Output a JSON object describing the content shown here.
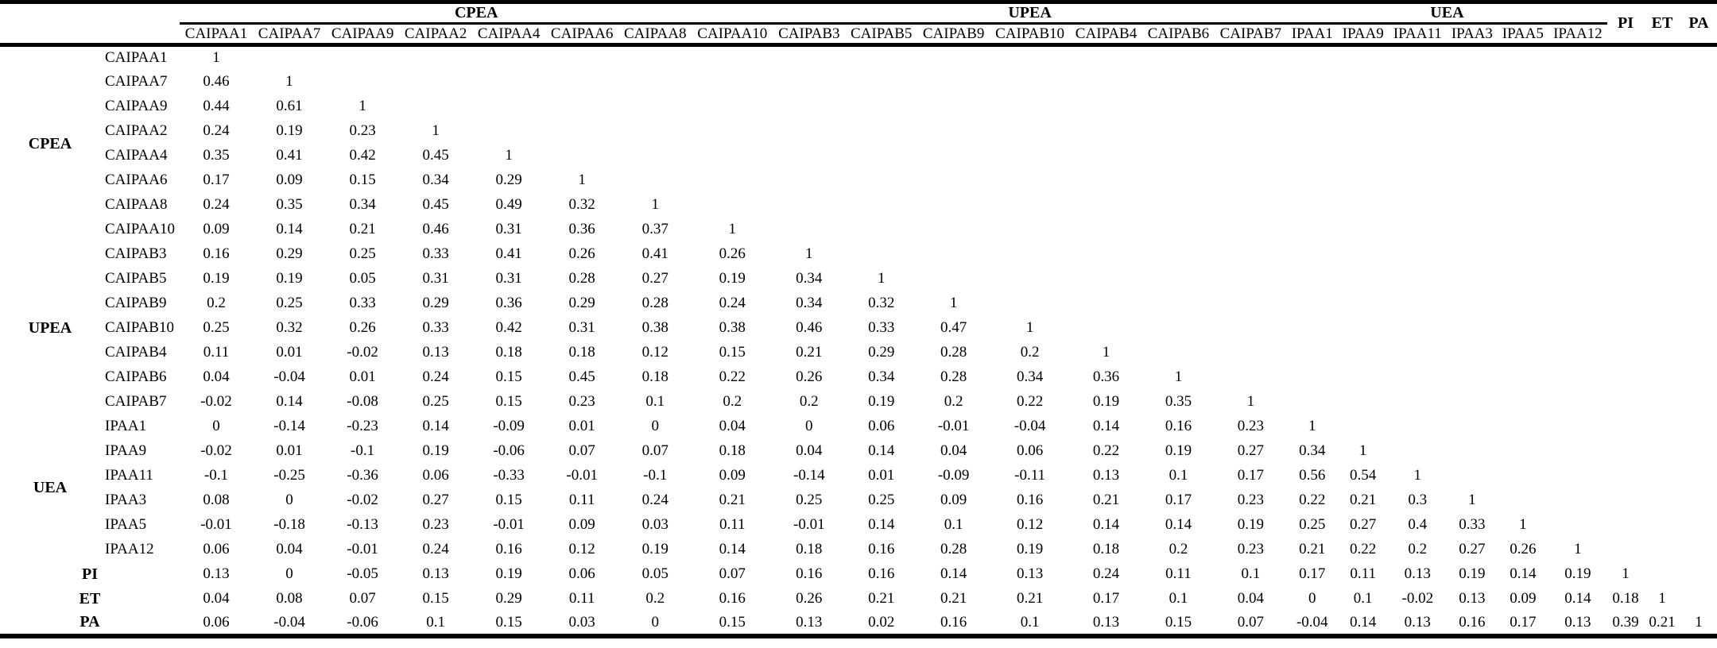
{
  "page": {
    "background": "#ffffff",
    "text_color": "#000000",
    "rule_color": "#000000"
  },
  "table": {
    "corner_label": "",
    "column_groups": [
      {
        "label": "CPEA",
        "span": 8
      },
      {
        "label": "UPEA",
        "span": 7
      },
      {
        "label": "UEA",
        "span": 6
      }
    ],
    "columns": [
      "CAIPAA1",
      "CAIPAA7",
      "CAIPAA9",
      "CAIPAA2",
      "CAIPAA4",
      "CAIPAA6",
      "CAIPAA8",
      "CAIPAA10",
      "CAIPAB3",
      "CAIPAB5",
      "CAIPAB9",
      "CAIPAB10",
      "CAIPAB4",
      "CAIPAB6",
      "CAIPAB7",
      "IPAA1",
      "IPAA9",
      "IPAA11",
      "IPAA3",
      "IPAA5",
      "IPAA12"
    ],
    "tail_columns": [
      "PI",
      "ET",
      "PA"
    ],
    "row_groups": [
      {
        "label": "CPEA",
        "rows": [
          {
            "label": "CAIPAA1",
            "values": [
              "1"
            ]
          },
          {
            "label": "CAIPAA7",
            "values": [
              "0.46",
              "1"
            ]
          },
          {
            "label": "CAIPAA9",
            "values": [
              "0.44",
              "0.61",
              "1"
            ]
          },
          {
            "label": "CAIPAA2",
            "values": [
              "0.24",
              "0.19",
              "0.23",
              "1"
            ]
          },
          {
            "label": "CAIPAA4",
            "values": [
              "0.35",
              "0.41",
              "0.42",
              "0.45",
              "1"
            ]
          },
          {
            "label": "CAIPAA6",
            "values": [
              "0.17",
              "0.09",
              "0.15",
              "0.34",
              "0.29",
              "1"
            ]
          },
          {
            "label": "CAIPAA8",
            "values": [
              "0.24",
              "0.35",
              "0.34",
              "0.45",
              "0.49",
              "0.32",
              "1"
            ]
          },
          {
            "label": "CAIPAA10",
            "values": [
              "0.09",
              "0.14",
              "0.21",
              "0.46",
              "0.31",
              "0.36",
              "0.37",
              "1"
            ]
          }
        ]
      },
      {
        "label": "UPEA",
        "rows": [
          {
            "label": "CAIPAB3",
            "values": [
              "0.16",
              "0.29",
              "0.25",
              "0.33",
              "0.41",
              "0.26",
              "0.41",
              "0.26",
              "1"
            ]
          },
          {
            "label": "CAIPAB5",
            "values": [
              "0.19",
              "0.19",
              "0.05",
              "0.31",
              "0.31",
              "0.28",
              "0.27",
              "0.19",
              "0.34",
              "1"
            ]
          },
          {
            "label": "CAIPAB9",
            "values": [
              "0.2",
              "0.25",
              "0.33",
              "0.29",
              "0.36",
              "0.29",
              "0.28",
              "0.24",
              "0.34",
              "0.32",
              "1"
            ]
          },
          {
            "label": "CAIPAB10",
            "values": [
              "0.25",
              "0.32",
              "0.26",
              "0.33",
              "0.42",
              "0.31",
              "0.38",
              "0.38",
              "0.46",
              "0.33",
              "0.47",
              "1"
            ]
          },
          {
            "label": "CAIPAB4",
            "values": [
              "0.11",
              "0.01",
              "-0.02",
              "0.13",
              "0.18",
              "0.18",
              "0.12",
              "0.15",
              "0.21",
              "0.29",
              "0.28",
              "0.2",
              "1"
            ]
          },
          {
            "label": "CAIPAB6",
            "values": [
              "0.04",
              "-0.04",
              "0.01",
              "0.24",
              "0.15",
              "0.45",
              "0.18",
              "0.22",
              "0.26",
              "0.34",
              "0.28",
              "0.34",
              "0.36",
              "1"
            ]
          },
          {
            "label": "CAIPAB7",
            "values": [
              "-0.02",
              "0.14",
              "-0.08",
              "0.25",
              "0.15",
              "0.23",
              "0.1",
              "0.2",
              "0.2",
              "0.19",
              "0.2",
              "0.22",
              "0.19",
              "0.35",
              "1"
            ]
          }
        ]
      },
      {
        "label": "UEA",
        "rows": [
          {
            "label": "IPAA1",
            "values": [
              "0",
              "-0.14",
              "-0.23",
              "0.14",
              "-0.09",
              "0.01",
              "0",
              "0.04",
              "0",
              "0.06",
              "-0.01",
              "-0.04",
              "0.14",
              "0.16",
              "0.23",
              "1"
            ]
          },
          {
            "label": "IPAA9",
            "values": [
              "-0.02",
              "0.01",
              "-0.1",
              "0.19",
              "-0.06",
              "0.07",
              "0.07",
              "0.18",
              "0.04",
              "0.14",
              "0.04",
              "0.06",
              "0.22",
              "0.19",
              "0.27",
              "0.34",
              "1"
            ]
          },
          {
            "label": "IPAA11",
            "values": [
              "-0.1",
              "-0.25",
              "-0.36",
              "0.06",
              "-0.33",
              "-0.01",
              "-0.1",
              "0.09",
              "-0.14",
              "0.01",
              "-0.09",
              "-0.11",
              "0.13",
              "0.1",
              "0.17",
              "0.56",
              "0.54",
              "1"
            ]
          },
          {
            "label": "IPAA3",
            "values": [
              "0.08",
              "0",
              "-0.02",
              "0.27",
              "0.15",
              "0.11",
              "0.24",
              "0.21",
              "0.25",
              "0.25",
              "0.09",
              "0.16",
              "0.21",
              "0.17",
              "0.23",
              "0.22",
              "0.21",
              "0.3",
              "1"
            ]
          },
          {
            "label": "IPAA5",
            "values": [
              "-0.01",
              "-0.18",
              "-0.13",
              "0.23",
              "-0.01",
              "0.09",
              "0.03",
              "0.11",
              "-0.01",
              "0.14",
              "0.1",
              "0.12",
              "0.14",
              "0.14",
              "0.19",
              "0.25",
              "0.27",
              "0.4",
              "0.33",
              "1"
            ]
          },
          {
            "label": "IPAA12",
            "values": [
              "0.06",
              "0.04",
              "-0.01",
              "0.24",
              "0.16",
              "0.12",
              "0.19",
              "0.14",
              "0.18",
              "0.16",
              "0.28",
              "0.19",
              "0.18",
              "0.2",
              "0.23",
              "0.21",
              "0.22",
              "0.2",
              "0.27",
              "0.26",
              "1"
            ]
          }
        ]
      }
    ],
    "tail_rows": [
      {
        "label": "PI",
        "values": [
          "0.13",
          "0",
          "-0.05",
          "0.13",
          "0.19",
          "0.06",
          "0.05",
          "0.07",
          "0.16",
          "0.16",
          "0.14",
          "0.13",
          "0.24",
          "0.11",
          "0.1",
          "0.17",
          "0.11",
          "0.13",
          "0.19",
          "0.14",
          "0.19",
          "1"
        ]
      },
      {
        "label": "ET",
        "values": [
          "0.04",
          "0.08",
          "0.07",
          "0.15",
          "0.29",
          "0.11",
          "0.2",
          "0.16",
          "0.26",
          "0.21",
          "0.21",
          "0.21",
          "0.17",
          "0.1",
          "0.04",
          "0",
          "0.1",
          "-0.02",
          "0.13",
          "0.09",
          "0.14",
          "0.18",
          "1"
        ]
      },
      {
        "label": "PA",
        "values": [
          "0.06",
          "-0.04",
          "-0.06",
          "0.1",
          "0.15",
          "0.03",
          "0",
          "0.15",
          "0.13",
          "0.02",
          "0.16",
          "0.1",
          "0.13",
          "0.15",
          "0.07",
          "-0.04",
          "0.14",
          "0.13",
          "0.16",
          "0.17",
          "0.13",
          "0.39",
          "0.21",
          "1"
        ]
      }
    ]
  }
}
